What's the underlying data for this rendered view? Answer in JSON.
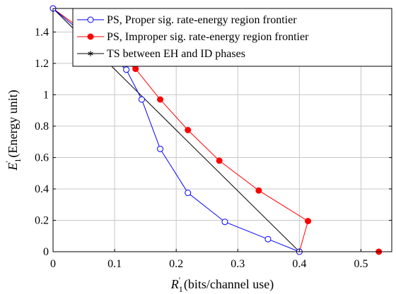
{
  "chart_data": {
    "type": "line",
    "title": "",
    "xlabel": {
      "main": "R",
      "sub": "1",
      "sup": "′",
      "suffix": " (bits/channel use)"
    },
    "ylabel": {
      "main": "E",
      "sub": "1",
      "sup": "′",
      "suffix": " (Energy unit)"
    },
    "xlim": [
      0,
      0.55
    ],
    "ylim": [
      0,
      1.55
    ],
    "grid": true,
    "legend_position": "top-right",
    "xticks": [
      0,
      0.1,
      0.2,
      0.3,
      0.4,
      0.5
    ],
    "xtick_labels": [
      "0",
      "0.1",
      "0.2",
      "0.3",
      "0.4",
      "0.5"
    ],
    "yticks": [
      0,
      0.2,
      0.4,
      0.6,
      0.8,
      1,
      1.2,
      1.4
    ],
    "ytick_labels": [
      "0",
      "0.2",
      "0.4",
      "0.6",
      "0.8",
      "1",
      "1.2",
      "1.4"
    ],
    "series": [
      {
        "name": "PS, Proper sig. rate-energy region frontier",
        "color": "#0000ff",
        "marker": "open-circle",
        "x": [
          0,
          0.119,
          0.144,
          0.174,
          0.219,
          0.279,
          0.349,
          0.4
        ],
        "y": [
          1.55,
          1.16,
          0.97,
          0.655,
          0.375,
          0.19,
          0.08,
          0
        ]
      },
      {
        "name": "PS, Improper sig. rate-energy region frontier",
        "color": "#ff0000",
        "marker": "filled-circle",
        "x": [
          0,
          0.134,
          0.174,
          0.219,
          0.27,
          0.334,
          0.414,
          0.4,
          0.529
        ],
        "y": [
          1.55,
          1.165,
          0.97,
          0.775,
          0.58,
          0.39,
          0.195,
          0,
          0
        ]
      },
      {
        "name": "TS between EH and ID phases",
        "color": "#000000",
        "marker": "star",
        "x": [
          0,
          0.4
        ],
        "y": [
          1.55,
          0
        ]
      }
    ]
  }
}
